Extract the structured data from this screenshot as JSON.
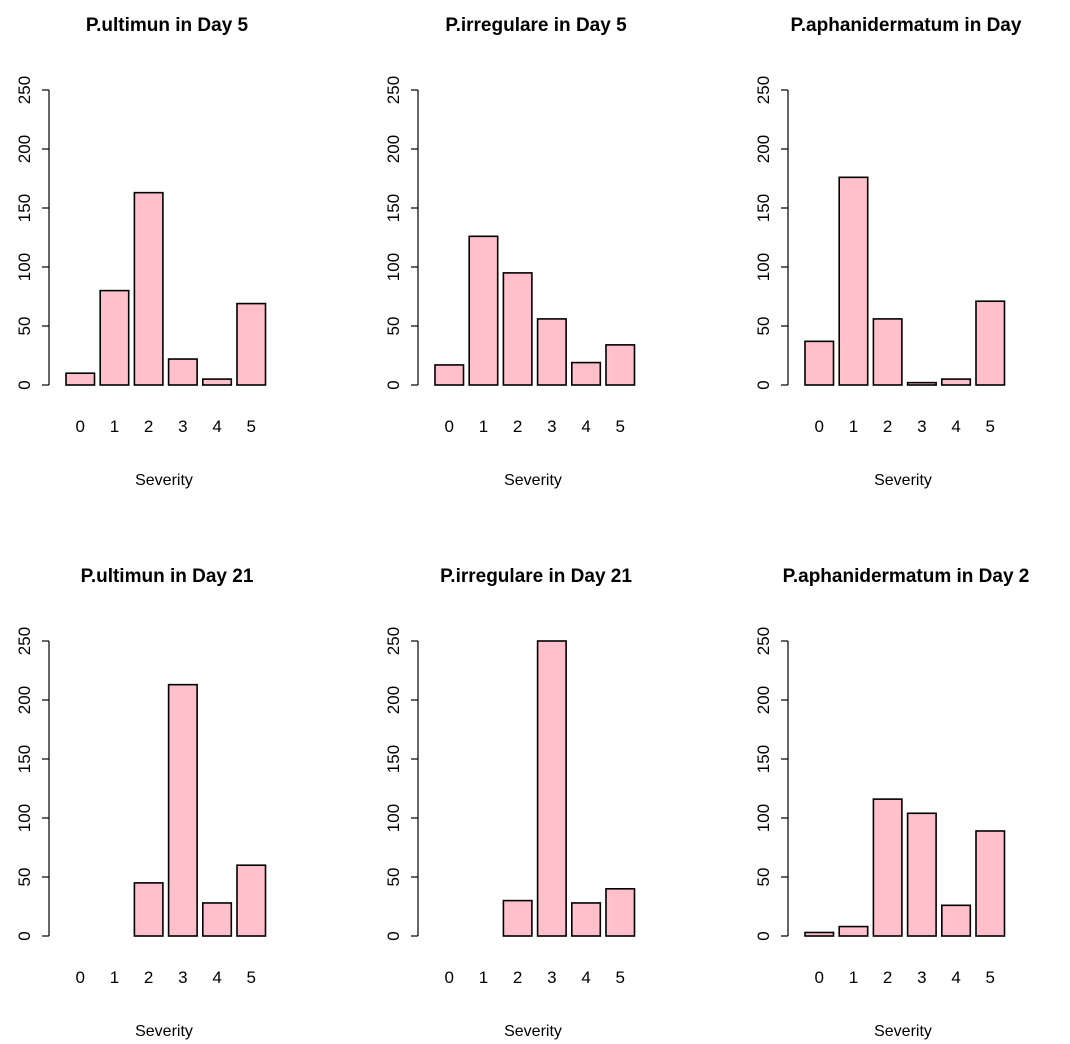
{
  "colors": {
    "bar_fill": "#ffc0cb",
    "bar_stroke": "#000000"
  },
  "chart_data": [
    {
      "type": "bar",
      "title": "P.ultimun in Day 5",
      "xlabel": "Severity",
      "ylabel": "",
      "categories": [
        "0",
        "1",
        "2",
        "3",
        "4",
        "5"
      ],
      "values": [
        10,
        80,
        163,
        22,
        5,
        69
      ],
      "ylim": [
        0,
        250
      ],
      "yticks": [
        "0",
        "50",
        "100",
        "150",
        "200",
        "250"
      ],
      "grid": false
    },
    {
      "type": "bar",
      "title": "P.irregulare in Day 5",
      "xlabel": "Severity",
      "ylabel": "",
      "categories": [
        "0",
        "1",
        "2",
        "3",
        "4",
        "5"
      ],
      "values": [
        17,
        126,
        95,
        56,
        19,
        34
      ],
      "ylim": [
        0,
        250
      ],
      "yticks": [
        "0",
        "50",
        "100",
        "150",
        "200",
        "250"
      ],
      "grid": false
    },
    {
      "type": "bar",
      "title": "P.aphanidermatum in Day",
      "xlabel": "Severity",
      "ylabel": "",
      "categories": [
        "0",
        "1",
        "2",
        "3",
        "4",
        "5"
      ],
      "values": [
        37,
        176,
        56,
        2,
        5,
        71
      ],
      "ylim": [
        0,
        250
      ],
      "yticks": [
        "0",
        "50",
        "100",
        "150",
        "200",
        "250"
      ],
      "grid": false
    },
    {
      "type": "bar",
      "title": "P.ultimun in Day 21",
      "xlabel": "Severity",
      "ylabel": "",
      "categories": [
        "0",
        "1",
        "2",
        "3",
        "4",
        "5"
      ],
      "values": [
        0,
        0,
        45,
        213,
        28,
        60
      ],
      "ylim": [
        0,
        250
      ],
      "yticks": [
        "0",
        "50",
        "100",
        "150",
        "200",
        "250"
      ],
      "grid": false
    },
    {
      "type": "bar",
      "title": "P.irregulare in Day 21",
      "xlabel": "Severity",
      "ylabel": "",
      "categories": [
        "0",
        "1",
        "2",
        "3",
        "4",
        "5"
      ],
      "values": [
        0,
        0,
        30,
        250,
        28,
        40
      ],
      "ylim": [
        0,
        250
      ],
      "yticks": [
        "0",
        "50",
        "100",
        "150",
        "200",
        "250"
      ],
      "grid": false
    },
    {
      "type": "bar",
      "title": "P.aphanidermatum in Day 2",
      "xlabel": "Severity",
      "ylabel": "",
      "categories": [
        "0",
        "1",
        "2",
        "3",
        "4",
        "5"
      ],
      "values": [
        3,
        8,
        116,
        104,
        26,
        89
      ],
      "ylim": [
        0,
        250
      ],
      "yticks": [
        "0",
        "50",
        "100",
        "150",
        "200",
        "250"
      ],
      "grid": false
    }
  ]
}
